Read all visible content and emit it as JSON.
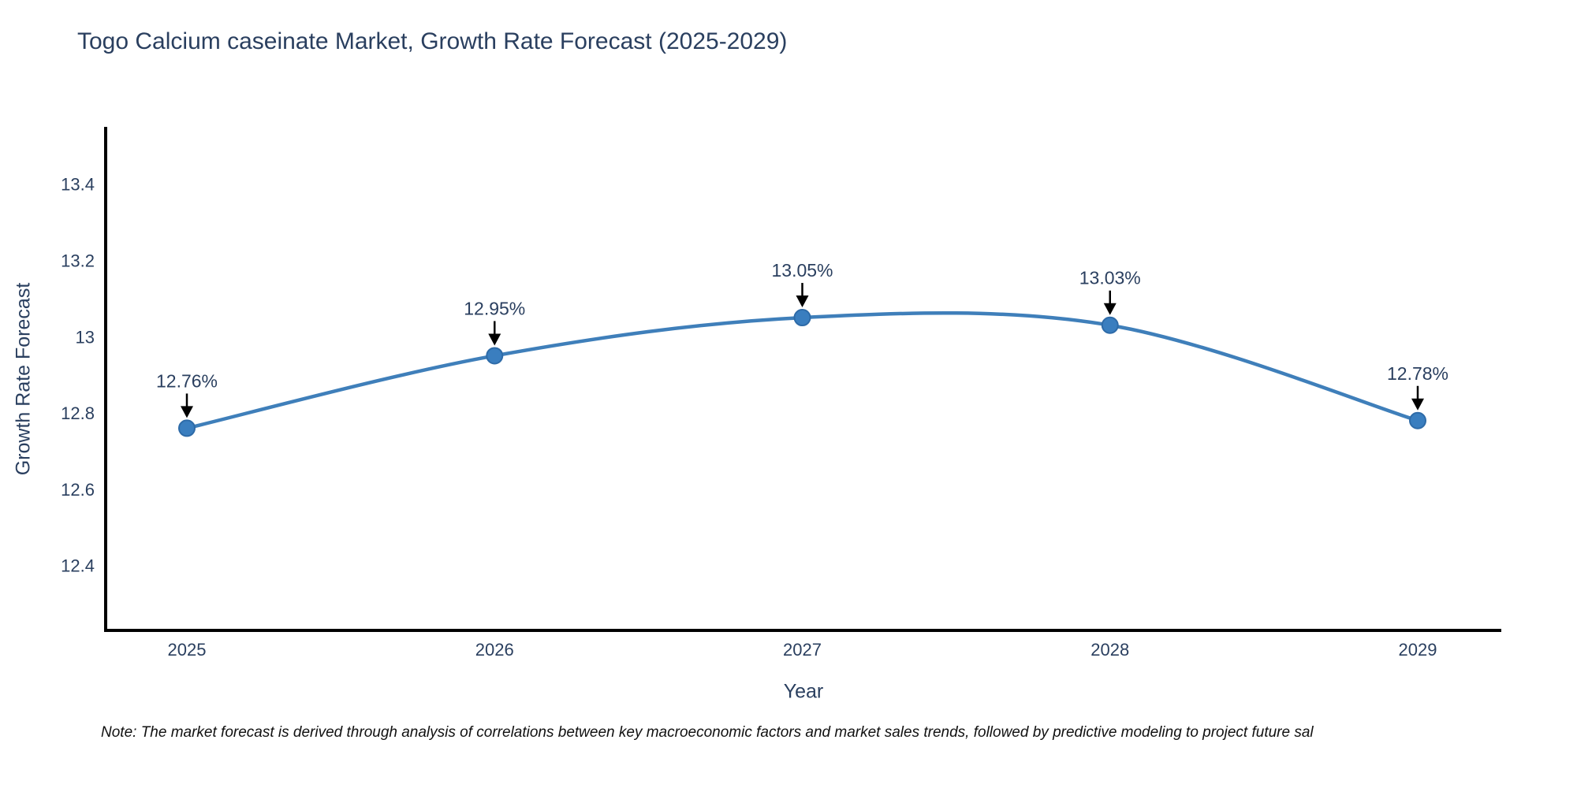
{
  "header": {
    "title": "Togo Calcium caseinate Market, Growth Rate Forecast (2025-2029)"
  },
  "chart_data": {
    "type": "line",
    "title": "Togo Calcium caseinate Market, Growth Rate Forecast (2025-2029)",
    "categories": [
      "2025",
      "2026",
      "2027",
      "2028",
      "2029"
    ],
    "x": [
      2025,
      2026,
      2027,
      2028,
      2029
    ],
    "series": [
      {
        "name": "Growth Rate Forecast",
        "values": [
          12.76,
          12.95,
          13.05,
          13.03,
          12.78
        ]
      }
    ],
    "point_labels": [
      "12.76%",
      "12.95%",
      "13.05%",
      "13.03%",
      "12.78%"
    ],
    "xlabel": "Year",
    "ylabel": "Growth Rate Forecast",
    "ylim": [
      12.23,
      13.55
    ],
    "yticks": [
      13.4,
      13.2,
      13,
      12.8,
      12.6,
      12.4
    ],
    "ytick_labels": [
      "13.4",
      "13.2",
      "13",
      "12.8",
      "12.6",
      "12.4"
    ],
    "grid": false,
    "legend": "none",
    "line_color": "#3f7fba",
    "marker_color": "#3a7ebf",
    "marker_edge_color": "#2e6ba8",
    "axis_color": "#000000",
    "text_color": "#2a3f5f",
    "annotation_color": "#2a3f5f",
    "arrow_color": "#000000",
    "smoothing": "spline"
  },
  "footer": {
    "note": "Note: The market forecast is derived through analysis of correlations between key macroeconomic factors and market sales trends, followed by predictive modeling to project future sal"
  }
}
